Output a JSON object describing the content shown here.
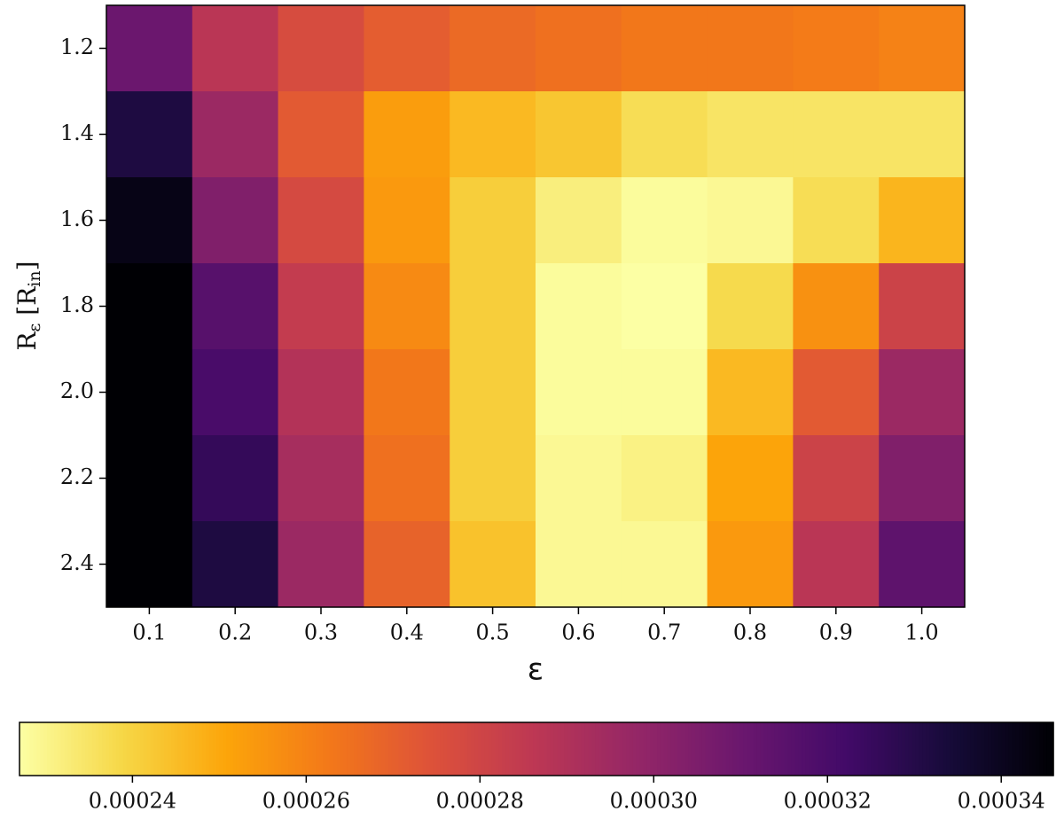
{
  "chart_data": {
    "type": "heatmap",
    "x_label": "ε",
    "y_label": [
      "R",
      "ε",
      " [R",
      "in",
      "]"
    ],
    "x": [
      0.1,
      0.2,
      0.3,
      0.4,
      0.5,
      0.6,
      0.7,
      0.8,
      0.9,
      1.0
    ],
    "y": [
      1.2,
      1.4,
      1.6,
      1.8,
      2.0,
      2.2,
      2.4
    ],
    "z": [
      [
        0.00031,
        0.000287,
        0.000277,
        0.000271,
        0.000267,
        0.000265,
        0.000263,
        0.000263,
        0.000262,
        0.00026
      ],
      [
        0.000332,
        0.000296,
        0.000272,
        0.000253,
        0.000246,
        0.000243,
        0.000237,
        0.000235,
        0.000235,
        0.000235
      ],
      [
        0.000342,
        0.000304,
        0.000278,
        0.000254,
        0.000241,
        0.000232,
        0.000228,
        0.000229,
        0.000237,
        0.000247
      ],
      [
        0.000346,
        0.000316,
        0.000284,
        0.000258,
        0.000241,
        0.000228,
        0.000227,
        0.000238,
        0.000256,
        0.000281
      ],
      [
        0.000346,
        0.00032,
        0.000289,
        0.000263,
        0.000241,
        0.000228,
        0.000228,
        0.000246,
        0.000272,
        0.000296
      ],
      [
        0.000346,
        0.000326,
        0.000293,
        0.000265,
        0.000241,
        0.000229,
        0.000231,
        0.000251,
        0.000281,
        0.000304
      ],
      [
        0.000346,
        0.000332,
        0.000296,
        0.000269,
        0.000244,
        0.000229,
        0.000229,
        0.000254,
        0.000287,
        0.000314
      ]
    ],
    "xlim": [
      0.05,
      1.05
    ],
    "ylim": [
      2.5,
      1.1
    ],
    "xticks": [
      0.1,
      0.2,
      0.3,
      0.4,
      0.5,
      0.6,
      0.7,
      0.8,
      0.9,
      {
        "value": 1.0,
        "label": "1.0"
      }
    ],
    "yticks": [
      1.2,
      1.4,
      1.6,
      1.8,
      {
        "value": 2.0,
        "label": "2.0"
      },
      2.2,
      2.4
    ],
    "colormap": "inferno",
    "colormap_reversed": true,
    "clim": [
      0.000227,
      0.000346
    ],
    "colorbar_ticks": [
      0.00024,
      0.00026,
      0.00028,
      {
        "value": 0.0003,
        "label": "0.00030"
      },
      0.00032,
      0.00034
    ]
  }
}
